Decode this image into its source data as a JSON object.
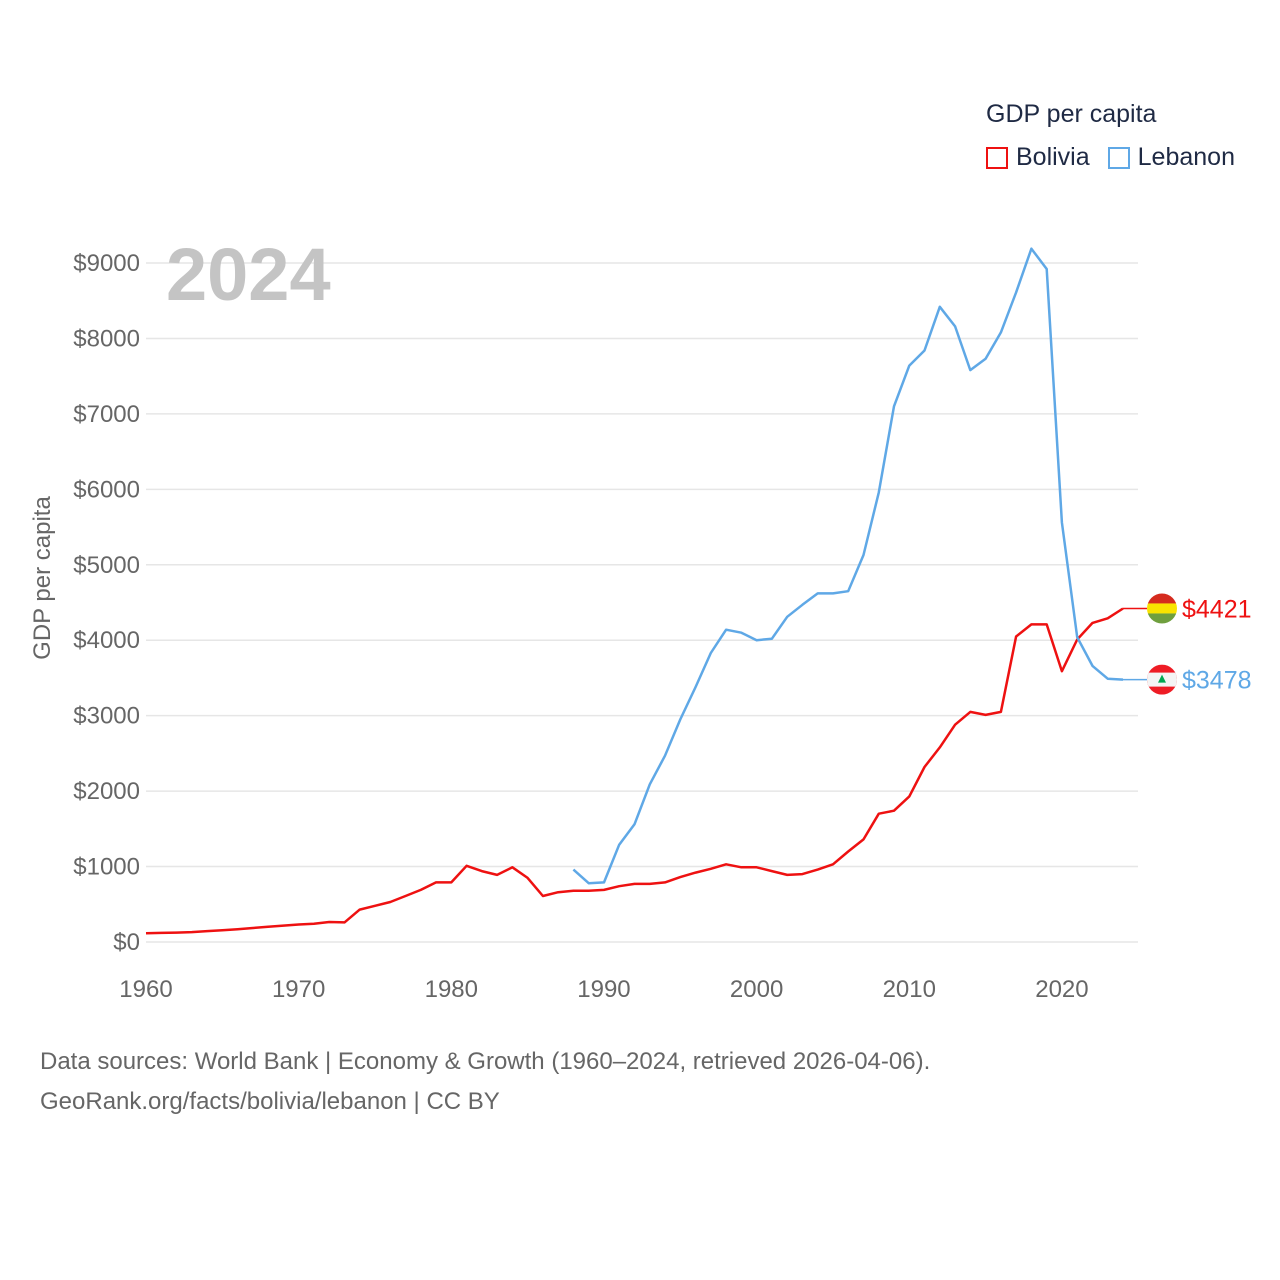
{
  "legend": {
    "title": "GDP per capita"
  },
  "footer": {
    "line1": "Data sources: World Bank | Economy & Growth (1960–2024, retrieved 2026-04-06).",
    "line2": "GeoRank.org/facts/bolivia/lebanon | CC BY"
  },
  "chart_data": {
    "type": "line",
    "title": "GDP per capita",
    "year_label": "2024",
    "xlabel": "",
    "ylabel": "GDP per capita",
    "xlim": [
      1960,
      2024
    ],
    "ylim": [
      0,
      9000
    ],
    "x_ticks": [
      "1960",
      "1970",
      "1980",
      "1990",
      "2000",
      "2010",
      "2020"
    ],
    "y_ticks": [
      "$0",
      "$1000",
      "$2000",
      "$3000",
      "$4000",
      "$5000",
      "$6000",
      "$7000",
      "$8000",
      "$9000"
    ],
    "grid": true,
    "legend_position": "top-right",
    "series": [
      {
        "name": "Bolivia",
        "color": "#ee1111",
        "end_label": "$4421",
        "x_start": 1960,
        "values": [
          115,
          120,
          125,
          131,
          145,
          157,
          170,
          185,
          203,
          218,
          232,
          242,
          265,
          260,
          430,
          480,
          530,
          610,
          690,
          790,
          790,
          1010,
          940,
          890,
          990,
          850,
          610,
          660,
          680,
          680,
          690,
          740,
          770,
          770,
          790,
          860,
          920,
          970,
          1030,
          990,
          990,
          940,
          890,
          900,
          960,
          1030,
          1200,
          1360,
          1700,
          1740,
          1930,
          2320,
          2580,
          2880,
          3050,
          3010,
          3050,
          4050,
          4210,
          4210,
          3590,
          4010,
          4230,
          4290,
          4421
        ]
      },
      {
        "name": "Lebanon",
        "color": "#5fa8e6",
        "end_label": "$3478",
        "x_start": 1988,
        "values": [
          960,
          780,
          790,
          1290,
          1560,
          2090,
          2470,
          2950,
          3380,
          3830,
          4140,
          4100,
          4000,
          4020,
          4310,
          4470,
          4620,
          4620,
          4650,
          5130,
          5960,
          7100,
          7640,
          7840,
          8420,
          8160,
          7580,
          7730,
          8080,
          8610,
          9190,
          8920,
          5560,
          4040,
          3660,
          3490,
          3478
        ]
      }
    ]
  }
}
